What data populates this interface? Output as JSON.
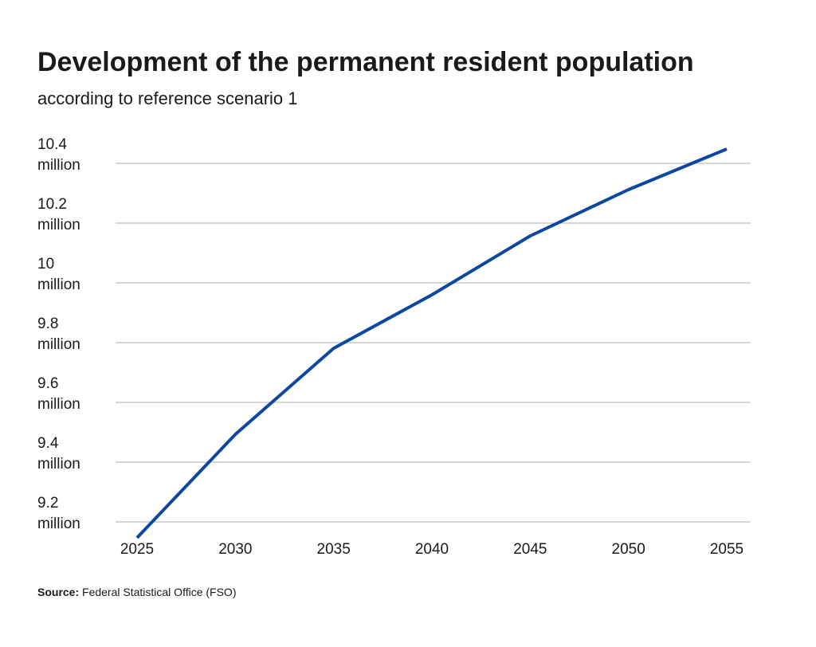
{
  "chart_data": {
    "type": "line",
    "title": "Development of the permanent resident population",
    "subtitle": "according to reference scenario 1",
    "source_label": "Source:",
    "source": "Federal Statistical Office (FSO)",
    "x": [
      2025,
      2030,
      2035,
      2040,
      2045,
      2050,
      2055
    ],
    "series": [
      {
        "name": "Permanent resident population",
        "color": "#0d47a1",
        "values": [
          9.147,
          9.493,
          9.781,
          9.96,
          10.157,
          10.312,
          10.448
        ]
      }
    ],
    "xlim": [
      2025,
      2055
    ],
    "xticks": [
      2025,
      2030,
      2035,
      2040,
      2045,
      2050,
      2055
    ],
    "ylim": [
      9.15,
      10.45
    ],
    "yticks": [
      {
        "value": 9.2,
        "label": "9.2 million"
      },
      {
        "value": 9.4,
        "label": "9.4 million"
      },
      {
        "value": 9.6,
        "label": "9.6 million"
      },
      {
        "value": 9.8,
        "label": "9.8 million"
      },
      {
        "value": 10,
        "label": "10 million"
      },
      {
        "value": 10.2,
        "label": "10.2 million"
      },
      {
        "value": 10.4,
        "label": "10.4 million"
      }
    ],
    "grid": true
  }
}
